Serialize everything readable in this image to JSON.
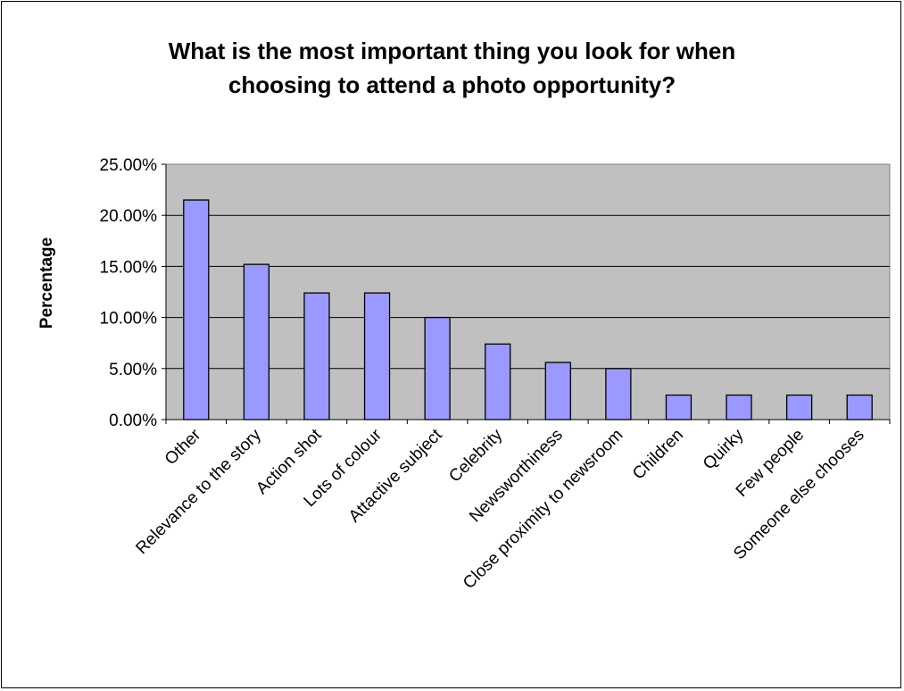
{
  "chart_data": {
    "type": "bar",
    "title_lines": [
      "What is the most important thing you look for when",
      "choosing to attend a photo opportunity?"
    ],
    "xlabel": "",
    "ylabel": "Percentage",
    "categories": [
      "Other",
      "Relevance to the story",
      "Action shot",
      "Lots of colour",
      "Attactive subject",
      "Celebrity",
      "Newsworthiness",
      "Close proximity to newsroom",
      "Children",
      "Quirky",
      "Few people",
      "Someone else chooses"
    ],
    "values": [
      21.5,
      15.2,
      12.4,
      12.4,
      10.0,
      7.4,
      5.6,
      5.0,
      2.4,
      2.4,
      2.4,
      2.4
    ],
    "ylim": [
      0,
      25
    ],
    "yticks": [
      0,
      5,
      10,
      15,
      20,
      25
    ],
    "ytick_labels": [
      "0.00%",
      "5.00%",
      "10.00%",
      "15.00%",
      "20.00%",
      "25.00%"
    ],
    "grid": true,
    "legend": "none",
    "colors": {
      "bar_fill": "#9999ff",
      "bar_stroke": "#000000",
      "plot_background": "#c0c0c0",
      "gridline": "#000000"
    }
  }
}
